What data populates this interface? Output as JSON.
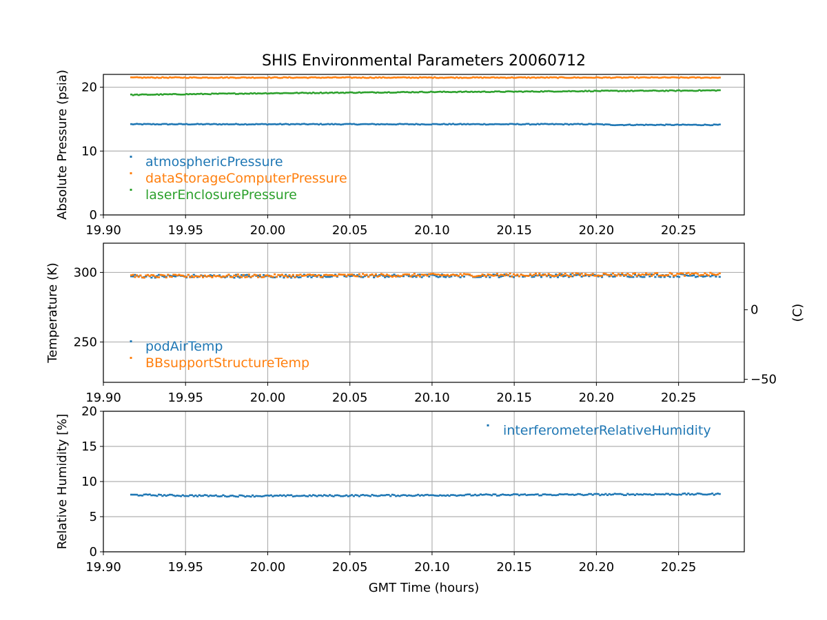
{
  "figure_title": "SHIS Environmental Parameters 20060712",
  "colors": {
    "blue": "#1f77b4",
    "orange": "#ff7f0e",
    "green": "#2ca02c",
    "grid": "#b0b0b0"
  },
  "chart_data": [
    {
      "type": "scatter",
      "title": "SHIS Environmental Parameters 20060712",
      "xlabel": "",
      "ylabel": "Absolute Pressure (psia)",
      "xlim": [
        19.9,
        20.29
      ],
      "ylim": [
        0,
        22
      ],
      "xticks": [
        19.9,
        19.95,
        20.0,
        20.05,
        20.1,
        20.15,
        20.2,
        20.25
      ],
      "xtick_labels": [
        "19.90",
        "19.95",
        "20.00",
        "20.05",
        "20.10",
        "20.15",
        "20.20",
        "20.25"
      ],
      "yticks": [
        0,
        10,
        20
      ],
      "ytick_labels": [
        "0",
        "10",
        "20"
      ],
      "grid": true,
      "legend_position": "lower-left",
      "series": [
        {
          "name": "atmosphericPressure",
          "color": "#1f77b4",
          "x": [
            19.917,
            20.0,
            20.1,
            20.2,
            20.21,
            20.275
          ],
          "y": [
            14.2,
            14.2,
            14.2,
            14.2,
            14.1,
            14.1
          ]
        },
        {
          "name": "dataStorageComputerPressure",
          "color": "#ff7f0e",
          "x": [
            19.917,
            20.275
          ],
          "y": [
            21.5,
            21.5
          ]
        },
        {
          "name": "laserEnclosurePressure",
          "color": "#2ca02c",
          "x": [
            19.917,
            19.95,
            20.0,
            20.05,
            20.1,
            20.15,
            20.2,
            20.25,
            20.275
          ],
          "y": [
            18.8,
            18.9,
            19.05,
            19.15,
            19.25,
            19.3,
            19.4,
            19.45,
            19.5
          ]
        }
      ]
    },
    {
      "type": "scatter",
      "xlabel": "",
      "ylabel": "Temperature (K)",
      "secondary_ylabel": "(C)",
      "xlim": [
        19.9,
        20.29
      ],
      "ylim": [
        221,
        321
      ],
      "yticks": [
        250,
        300
      ],
      "ytick_labels": [
        "250",
        "300"
      ],
      "secondary_yticks": [
        0,
        -50
      ],
      "secondary_ytick_labels": [
        "0",
        "−50"
      ],
      "xticks": [
        19.9,
        19.95,
        20.0,
        20.05,
        20.1,
        20.15,
        20.2,
        20.25
      ],
      "xtick_labels": [
        "19.90",
        "19.95",
        "20.00",
        "20.05",
        "20.10",
        "20.15",
        "20.20",
        "20.25"
      ],
      "grid": true,
      "legend_position": "lower-left",
      "series": [
        {
          "name": "podAirTemp",
          "color": "#1f77b4",
          "x": [
            19.917,
            20.0,
            20.1,
            20.2,
            20.275
          ],
          "y": [
            297.3,
            297.3,
            297.5,
            297.7,
            297.8
          ]
        },
        {
          "name": "BBsupportStructureTemp",
          "color": "#ff7f0e",
          "x": [
            19.917,
            19.95,
            20.0,
            20.05,
            20.1,
            20.15,
            20.2,
            20.25,
            20.275
          ],
          "y": [
            297.2,
            297.3,
            297.5,
            297.8,
            298.0,
            298.1,
            298.4,
            298.6,
            298.6
          ]
        }
      ]
    },
    {
      "type": "scatter",
      "xlabel": "GMT Time (hours)",
      "ylabel": "Relative Humidity [%]",
      "xlim": [
        19.9,
        20.29
      ],
      "ylim": [
        0,
        20
      ],
      "yticks": [
        0,
        5,
        10,
        15,
        20
      ],
      "ytick_labels": [
        "0",
        "5",
        "10",
        "15",
        "20"
      ],
      "xticks": [
        19.9,
        19.95,
        20.0,
        20.05,
        20.1,
        20.15,
        20.2,
        20.25
      ],
      "xtick_labels": [
        "19.90",
        "19.95",
        "20.00",
        "20.05",
        "20.10",
        "20.15",
        "20.20",
        "20.25"
      ],
      "grid": true,
      "legend_position": "upper-right",
      "series": [
        {
          "name": "interferometerRelativeHumidity",
          "color": "#1f77b4",
          "x": [
            19.917,
            19.95,
            19.98,
            20.0,
            20.05,
            20.1,
            20.15,
            20.2,
            20.25,
            20.275
          ],
          "y": [
            8.1,
            8.0,
            7.95,
            7.95,
            8.0,
            8.05,
            8.1,
            8.15,
            8.2,
            8.2
          ]
        }
      ]
    }
  ]
}
